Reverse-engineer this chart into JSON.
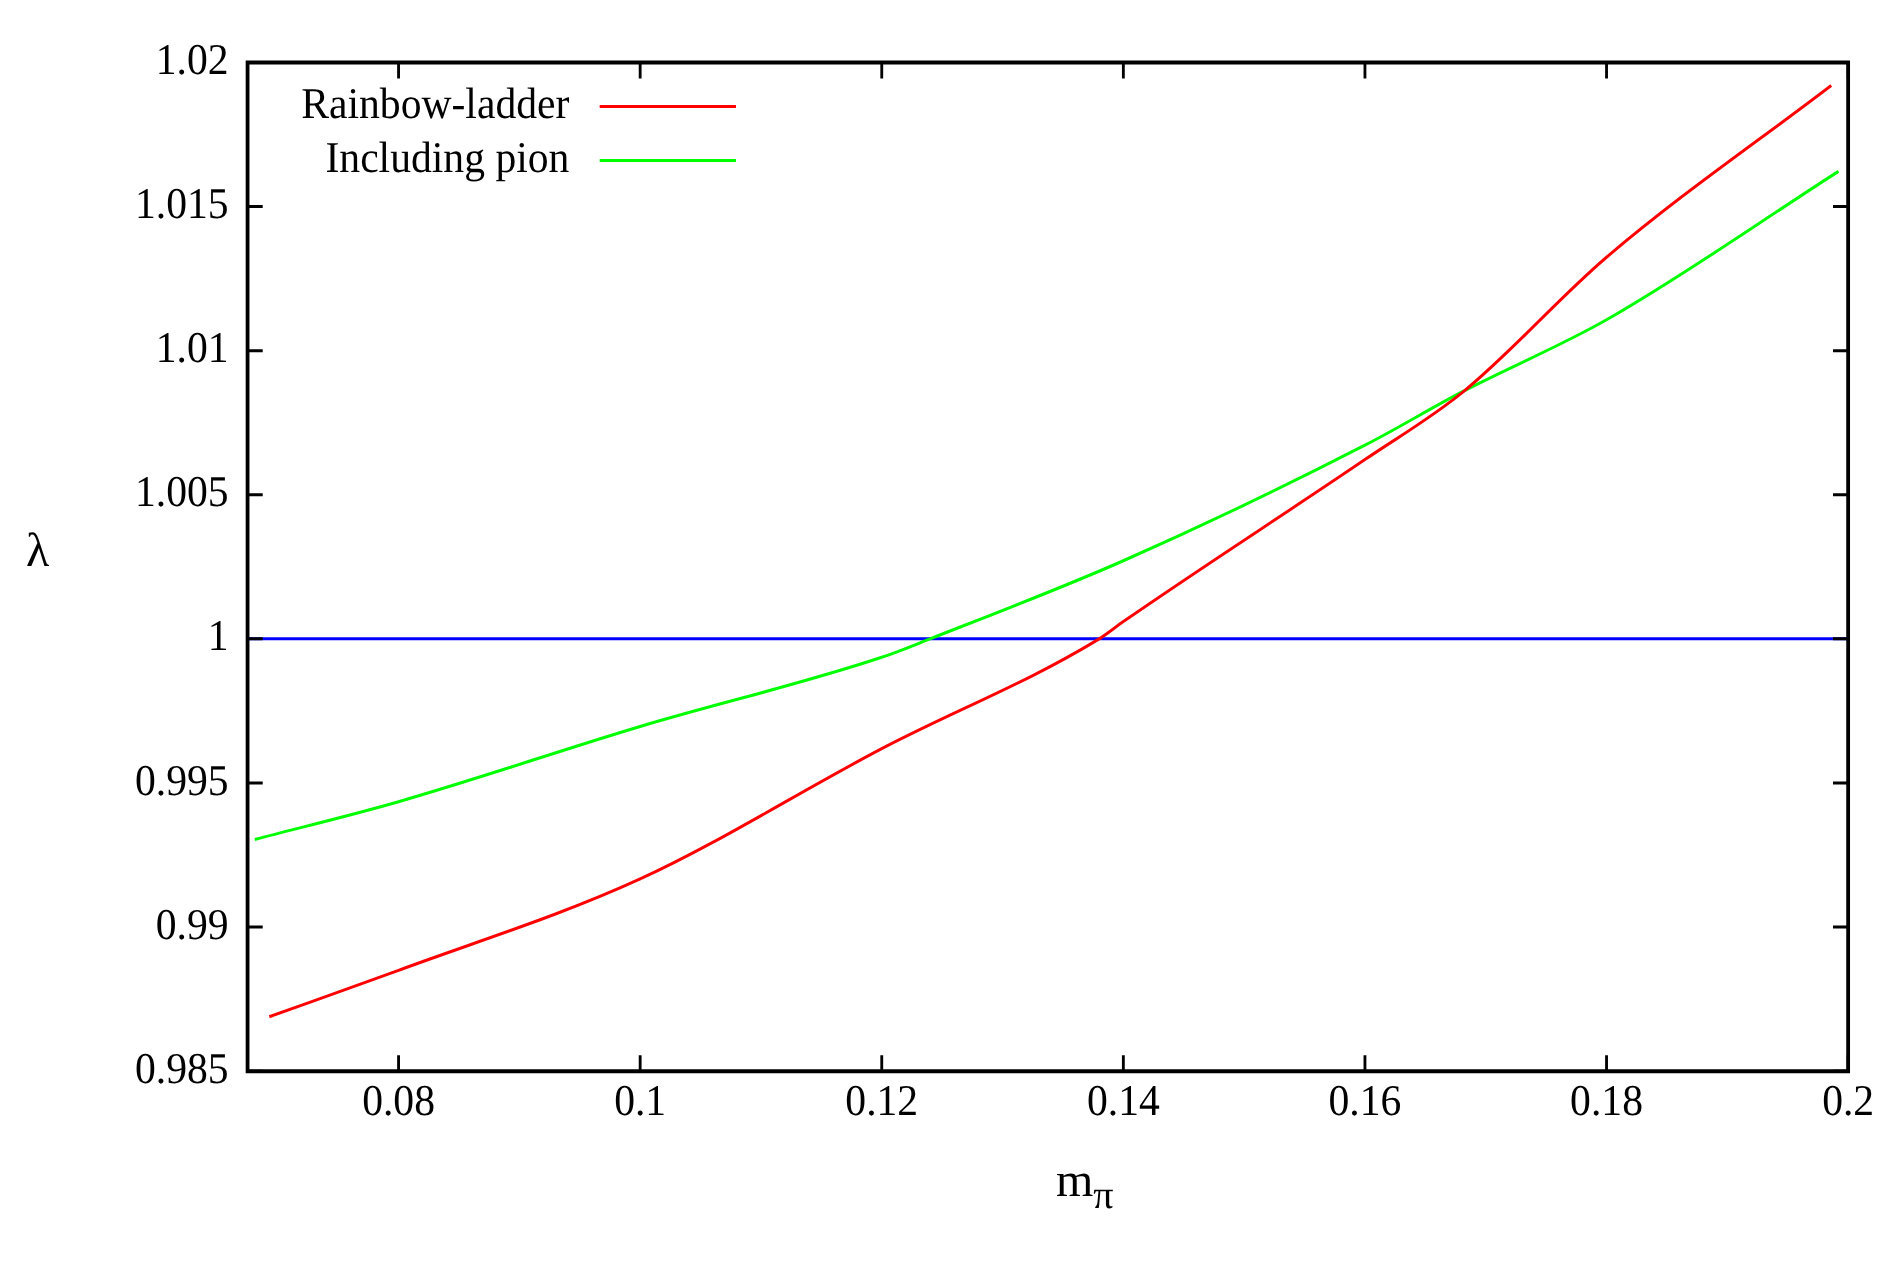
{
  "chart_data": {
    "type": "line",
    "xlabel": "m$_{π}$",
    "ylabel": "λ",
    "xlim": [
      0.0675,
      0.2
    ],
    "xticks": [
      0.08,
      0.1,
      0.12,
      0.14,
      0.16,
      0.18,
      0.2
    ],
    "ylim": [
      0.985,
      1.02
    ],
    "yticks": [
      0.985,
      0.99,
      0.995,
      1,
      1.005,
      1.01,
      1.015,
      1.02
    ],
    "grid": false,
    "legend": "top left",
    "marker": "none",
    "line_style": "solid",
    "ref_lines": [
      {
        "axis": "y",
        "value": 1,
        "color": "#0000ff"
      }
    ],
    "series": [
      {
        "name": "Rainbow-ladder",
        "color": "#ff0000",
        "x": [
          0.0693,
          0.08,
          0.1,
          0.12,
          0.138,
          0.14,
          0.16,
          0.1681,
          0.18,
          0.1986
        ],
        "values": [
          0.98689,
          0.9885,
          0.99167,
          0.99619,
          1.0,
          1.0006,
          1.00622,
          1.00856,
          1.01324,
          1.0192
        ]
      },
      {
        "name": "Including pion",
        "color": "#00ff00",
        "x": [
          0.0681,
          0.08,
          0.1,
          0.12,
          0.124,
          0.14,
          0.16,
          0.168,
          0.18,
          0.1992
        ],
        "values": [
          0.99304,
          0.99435,
          0.99696,
          0.99936,
          1.0,
          1.00271,
          1.00672,
          1.00856,
          1.01107,
          1.01622
        ]
      }
    ]
  }
}
